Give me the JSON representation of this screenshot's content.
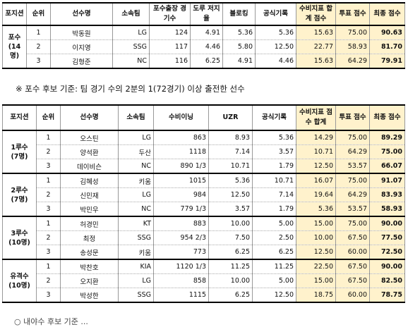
{
  "catcher": {
    "headers": [
      "포지션",
      "순위",
      "선수명",
      "소속팀",
      "포수출장 경기수",
      "도루 저지율",
      "블로킹",
      "공식기록",
      "수비지표 합계 점수",
      "투표 점수",
      "최종 점수"
    ],
    "position": "포수",
    "count": "(14명)",
    "rows": [
      {
        "rank": "1",
        "name": "박동원",
        "team": "LG",
        "games": "124",
        "cs": "4.91",
        "block": "5.36",
        "official": "5.36",
        "def_total": "15.63",
        "vote": "75.00",
        "final": "90.63"
      },
      {
        "rank": "2",
        "name": "이지영",
        "team": "SSG",
        "games": "117",
        "cs": "4.46",
        "block": "5.80",
        "official": "12.50",
        "def_total": "22.77",
        "vote": "58.93",
        "final": "81.70"
      },
      {
        "rank": "3",
        "name": "김형준",
        "team": "NC",
        "games": "116",
        "cs": "6.25",
        "block": "4.91",
        "official": "4.46",
        "def_total": "15.63",
        "vote": "64.29",
        "final": "79.91"
      }
    ]
  },
  "note": "※ 포수 후보 기준: 팀 경기 수의 2분의 1(72경기) 이상 출전한 선수",
  "infield": {
    "headers": [
      "포지션",
      "순위",
      "선수명",
      "소속팀",
      "수비이닝",
      "UZR",
      "공식기록",
      "수비지표 점수 합계",
      "투표 점수",
      "최종 점수"
    ],
    "groups": [
      {
        "position": "1루수",
        "count": "(7명)",
        "rows": [
          {
            "rank": "1",
            "name": "오스틴",
            "team": "LG",
            "innings": "863",
            "uzr": "8.93",
            "official": "5.36",
            "def_total": "14.29",
            "vote": "75.00",
            "final": "89.29"
          },
          {
            "rank": "2",
            "name": "양석환",
            "team": "두산",
            "innings": "1118",
            "uzr": "7.14",
            "official": "3.57",
            "def_total": "10.71",
            "vote": "64.29",
            "final": "75.00"
          },
          {
            "rank": "3",
            "name": "데이비슨",
            "team": "NC",
            "innings": "890 1/3",
            "uzr": "10.71",
            "official": "1.79",
            "def_total": "12.50",
            "vote": "53.57",
            "final": "66.07"
          }
        ]
      },
      {
        "position": "2루수",
        "count": "(7명)",
        "rows": [
          {
            "rank": "1",
            "name": "김혜성",
            "team": "키움",
            "innings": "1015",
            "uzr": "5.36",
            "official": "10.71",
            "def_total": "16.07",
            "vote": "75.00",
            "final": "91.07"
          },
          {
            "rank": "2",
            "name": "신민재",
            "team": "LG",
            "innings": "984",
            "uzr": "12.50",
            "official": "7.14",
            "def_total": "19.64",
            "vote": "64.29",
            "final": "83.93"
          },
          {
            "rank": "3",
            "name": "박민우",
            "team": "NC",
            "innings": "779 1/3",
            "uzr": "3.57",
            "official": "1.79",
            "def_total": "5.36",
            "vote": "53.57",
            "final": "58.93"
          }
        ]
      },
      {
        "position": "3루수",
        "count": "(10명)",
        "rows": [
          {
            "rank": "1",
            "name": "허경민",
            "team": "KT",
            "innings": "883",
            "uzr": "10.00",
            "official": "5.00",
            "def_total": "15.00",
            "vote": "75.00",
            "final": "90.00"
          },
          {
            "rank": "2",
            "name": "최정",
            "team": "SSG",
            "innings": "954 2/3",
            "uzr": "7.50",
            "official": "2.50",
            "def_total": "10.00",
            "vote": "67.50",
            "final": "77.50"
          },
          {
            "rank": "3",
            "name": "송성문",
            "team": "키움",
            "innings": "773",
            "uzr": "6.25",
            "official": "6.25",
            "def_total": "12.50",
            "vote": "60.00",
            "final": "72.50"
          }
        ]
      },
      {
        "position": "유격수",
        "count": "(10명)",
        "rows": [
          {
            "rank": "1",
            "name": "박찬호",
            "team": "KIA",
            "innings": "1120 1/3",
            "uzr": "11.25",
            "official": "11.25",
            "def_total": "22.50",
            "vote": "67.50",
            "final": "90.00"
          },
          {
            "rank": "2",
            "name": "오지환",
            "team": "LG",
            "innings": "858",
            "uzr": "10.00",
            "official": "5.00",
            "def_total": "15.00",
            "vote": "67.50",
            "final": "82.50"
          },
          {
            "rank": "3",
            "name": "박성한",
            "team": "SSG",
            "innings": "1115",
            "uzr": "6.25",
            "official": "12.50",
            "def_total": "18.75",
            "vote": "60.00",
            "final": "78.75"
          }
        ]
      }
    ]
  }
}
